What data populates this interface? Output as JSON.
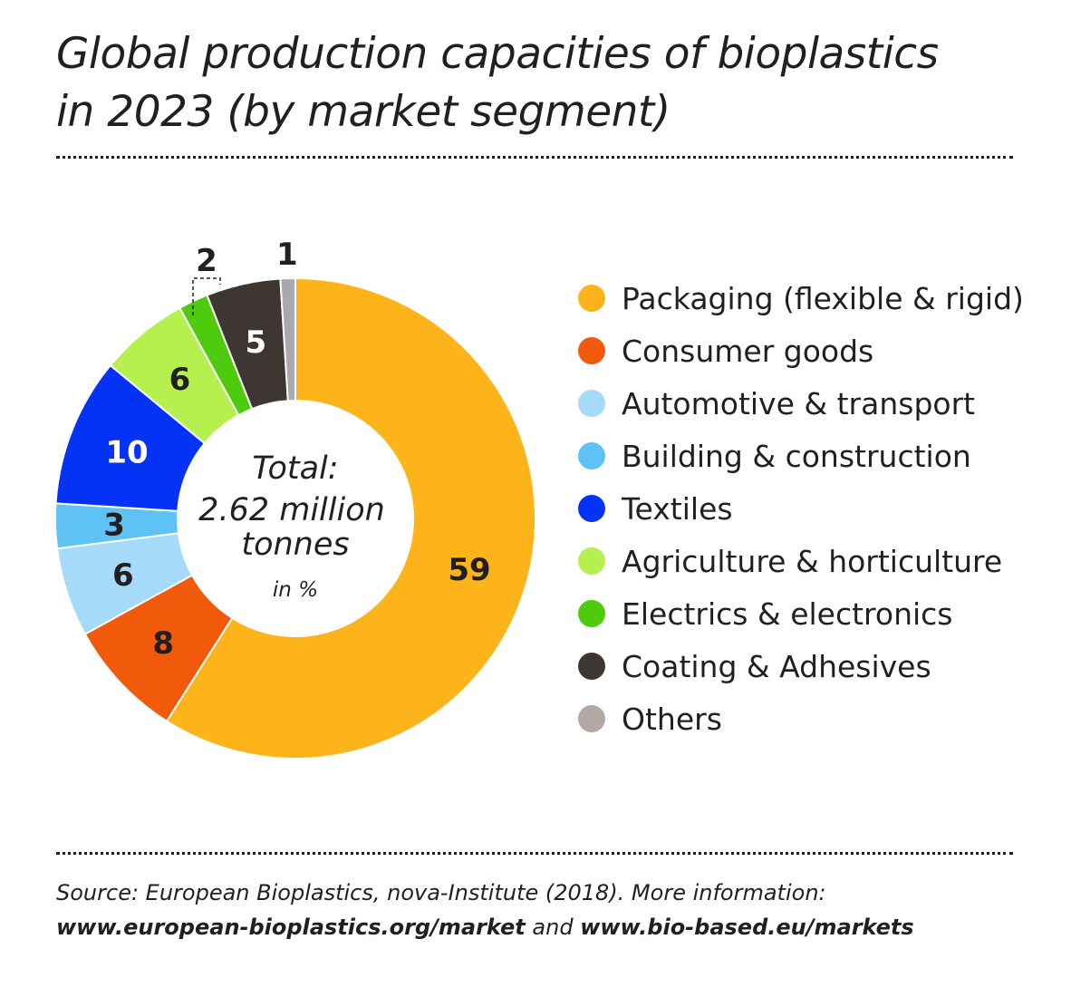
{
  "title_line1": "Global production capacities of bioplastics",
  "title_line2": "in 2023 (by market segment)",
  "chart_data": {
    "type": "pie",
    "donut": true,
    "title": "Global production capacities of bioplastics in 2023 (by market segment)",
    "center_text": [
      "Total:",
      "2.62 million",
      "tonnes"
    ],
    "unit_text": "in %",
    "legend_placement": "right",
    "categories": [
      "Packaging (flexible & rigid)",
      "Consumer goods",
      "Automotive & transport",
      "Building & construction",
      "Textiles",
      "Agriculture & horticulture",
      "Electrics & electronics",
      "Coating & Adhesives",
      "Others"
    ],
    "values": [
      59,
      8,
      6,
      3,
      10,
      6,
      2,
      5,
      1
    ],
    "colors": [
      "#FDB41A",
      "#F15A0B",
      "#A5DBF8",
      "#5EC3F4",
      "#0533F5",
      "#B5F04E",
      "#4ECB0C",
      "#3E3633",
      "#A9A8AC"
    ],
    "label_colors": [
      "#231f20",
      "#231f20",
      "#231f20",
      "#231f20",
      "#ffffff",
      "#231f20",
      "#231f20",
      "#ffffff",
      "#231f20"
    ]
  },
  "source": {
    "line1": "Source: European Bioplastics, nova-Institute (2018). More information:",
    "link1": "www.european-bioplastics.org/market",
    "and": " and ",
    "link2": "www.bio-based.eu/markets"
  }
}
